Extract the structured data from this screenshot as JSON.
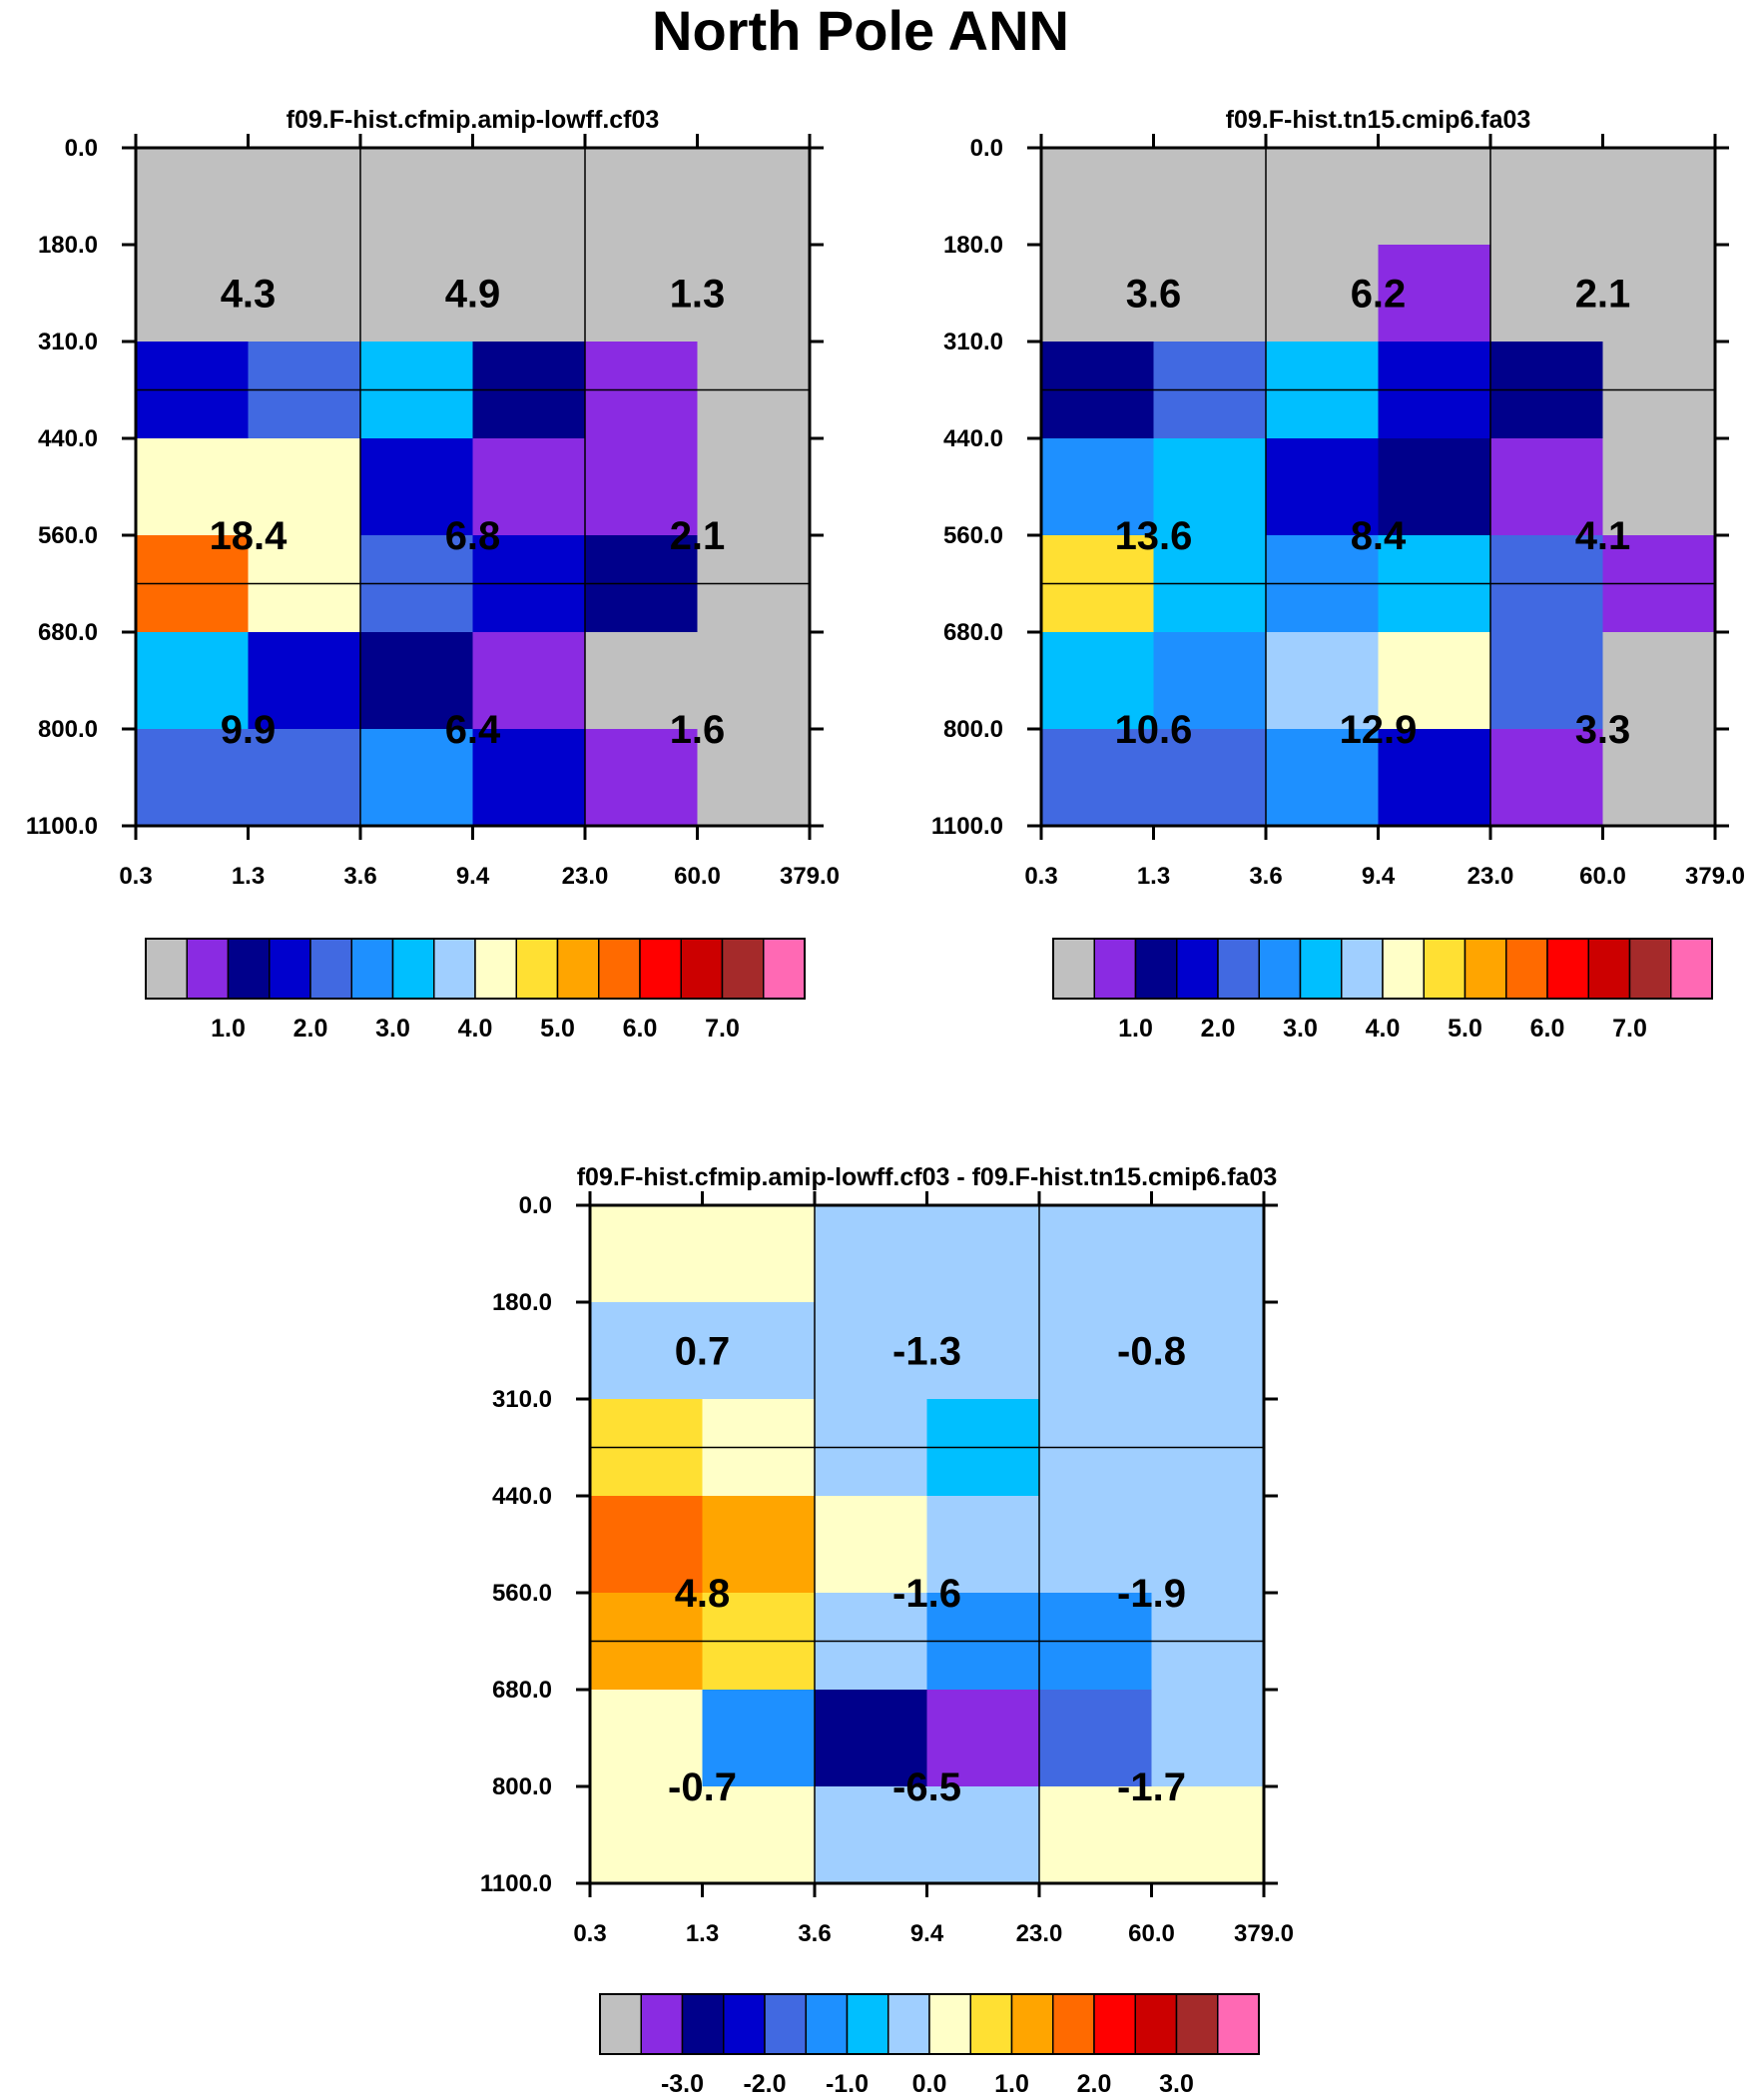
{
  "title": "North Pole ANN",
  "palette": [
    "#c0c0c0",
    "#8a2be2",
    "#00008b",
    "#0000cd",
    "#4169e1",
    "#1e90ff",
    "#00bfff",
    "#a0cfff",
    "#ffffc8",
    "#ffe033",
    "#ffa500",
    "#ff6a00",
    "#ff0000",
    "#cc0000",
    "#a52a2a",
    "#ff69b4"
  ],
  "chart_data": [
    {
      "type": "heatmap",
      "name": "panel-1",
      "title": "f09.F-hist.cfmip.amip-lowff.cf03",
      "x_tick_labels": [
        "0.3",
        "1.3",
        "3.6",
        "9.4",
        "23.0",
        "60.0",
        "379.0"
      ],
      "y_tick_labels": [
        "0.0",
        "180.0",
        "310.0",
        "440.0",
        "560.0",
        "680.0",
        "800.0",
        "1100.0"
      ],
      "cell_color_index": [
        [
          0,
          0,
          0,
          0,
          0,
          0
        ],
        [
          0,
          0,
          0,
          0,
          0,
          0
        ],
        [
          3,
          4,
          6,
          2,
          1,
          0
        ],
        [
          8,
          8,
          3,
          1,
          1,
          0
        ],
        [
          11,
          8,
          4,
          3,
          2,
          0
        ],
        [
          6,
          3,
          2,
          1,
          0,
          0
        ],
        [
          4,
          4,
          5,
          3,
          1,
          0
        ]
      ],
      "group_values": [
        [
          "4.3",
          "4.9",
          "1.3"
        ],
        [
          "18.4",
          "6.8",
          "2.1"
        ],
        [
          "9.9",
          "6.4",
          "1.6"
        ]
      ],
      "colorbar_labels": [
        "1.0",
        "2.0",
        "3.0",
        "4.0",
        "5.0",
        "6.0",
        "7.0"
      ]
    },
    {
      "type": "heatmap",
      "name": "panel-2",
      "title": "f09.F-hist.tn15.cmip6.fa03",
      "x_tick_labels": [
        "0.3",
        "1.3",
        "3.6",
        "9.4",
        "23.0",
        "60.0",
        "379.0"
      ],
      "y_tick_labels": [
        "0.0",
        "180.0",
        "310.0",
        "440.0",
        "560.0",
        "680.0",
        "800.0",
        "1100.0"
      ],
      "cell_color_index": [
        [
          0,
          0,
          0,
          0,
          0,
          0
        ],
        [
          0,
          0,
          0,
          1,
          0,
          0
        ],
        [
          2,
          4,
          6,
          3,
          2,
          0
        ],
        [
          5,
          6,
          3,
          2,
          1,
          0
        ],
        [
          9,
          6,
          5,
          6,
          4,
          1
        ],
        [
          6,
          5,
          7,
          8,
          4,
          0
        ],
        [
          4,
          4,
          5,
          3,
          1,
          0
        ]
      ],
      "group_values": [
        [
          "3.6",
          "6.2",
          "2.1"
        ],
        [
          "13.6",
          "8.4",
          "4.1"
        ],
        [
          "10.6",
          "12.9",
          "3.3"
        ]
      ],
      "colorbar_labels": [
        "1.0",
        "2.0",
        "3.0",
        "4.0",
        "5.0",
        "6.0",
        "7.0"
      ]
    },
    {
      "type": "heatmap",
      "name": "panel-diff",
      "title": "f09.F-hist.cfmip.amip-lowff.cf03 - f09.F-hist.tn15.cmip6.fa03",
      "x_tick_labels": [
        "0.3",
        "1.3",
        "3.6",
        "9.4",
        "23.0",
        "60.0",
        "379.0"
      ],
      "y_tick_labels": [
        "0.0",
        "180.0",
        "310.0",
        "440.0",
        "560.0",
        "680.0",
        "800.0",
        "1100.0"
      ],
      "cell_color_index": [
        [
          8,
          8,
          7,
          7,
          7,
          7
        ],
        [
          7,
          7,
          7,
          7,
          7,
          7
        ],
        [
          9,
          8,
          7,
          6,
          7,
          7
        ],
        [
          11,
          10,
          8,
          7,
          7,
          7
        ],
        [
          10,
          9,
          7,
          5,
          5,
          7
        ],
        [
          8,
          5,
          2,
          1,
          4,
          7
        ],
        [
          8,
          8,
          7,
          7,
          8,
          8
        ]
      ],
      "group_values": [
        [
          "0.7",
          "-1.3",
          "-0.8"
        ],
        [
          "4.8",
          "-1.6",
          "-1.9"
        ],
        [
          "-0.7",
          "-6.5",
          "-1.7"
        ]
      ],
      "colorbar_labels": [
        "-3.0",
        "-2.0",
        "-1.0",
        "0.0",
        "1.0",
        "2.0",
        "3.0"
      ]
    }
  ]
}
